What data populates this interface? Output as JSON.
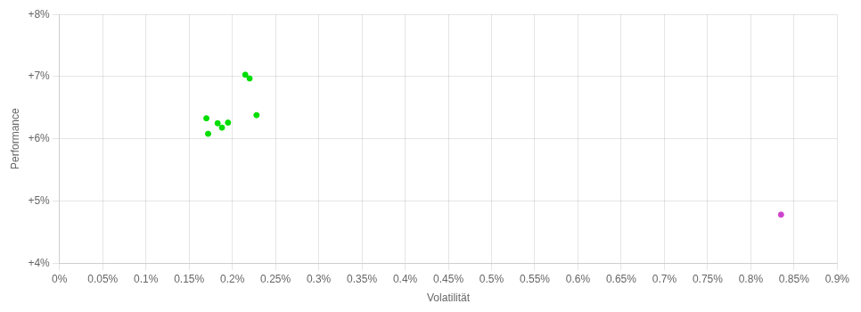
{
  "chart_data": {
    "type": "scatter",
    "x_label": "Volatilität",
    "y_label": "Performance",
    "xlim": [
      0.0,
      0.009
    ],
    "ylim": [
      0.04,
      0.08
    ],
    "xticks": [
      {
        "value": 0.0,
        "label": "0%"
      },
      {
        "value": 0.0005,
        "label": "0.05%"
      },
      {
        "value": 0.001,
        "label": "0.1%"
      },
      {
        "value": 0.0015,
        "label": "0.15%"
      },
      {
        "value": 0.002,
        "label": "0.2%"
      },
      {
        "value": 0.0025,
        "label": "0.25%"
      },
      {
        "value": 0.003,
        "label": "0.3%"
      },
      {
        "value": 0.0035,
        "label": "0.35%"
      },
      {
        "value": 0.004,
        "label": "0.4%"
      },
      {
        "value": 0.0045,
        "label": "0.45%"
      },
      {
        "value": 0.005,
        "label": "0.5%"
      },
      {
        "value": 0.0055,
        "label": "0.55%"
      },
      {
        "value": 0.006,
        "label": "0.6%"
      },
      {
        "value": 0.0065,
        "label": "0.65%"
      },
      {
        "value": 0.007,
        "label": "0.7%"
      },
      {
        "value": 0.0075,
        "label": "0.75%"
      },
      {
        "value": 0.008,
        "label": "0.8%"
      },
      {
        "value": 0.0085,
        "label": "0.85%"
      },
      {
        "value": 0.009,
        "label": "0.9%"
      }
    ],
    "yticks": [
      {
        "value": 0.04,
        "label": "+4%"
      },
      {
        "value": 0.05,
        "label": "+5%"
      },
      {
        "value": 0.06,
        "label": "+6%"
      },
      {
        "value": 0.07,
        "label": "+7%"
      },
      {
        "value": 0.08,
        "label": "+8%"
      }
    ],
    "series": [
      {
        "color": "#00dd00",
        "x": [
          0.00215,
          0.0022,
          0.0017,
          0.00183,
          0.00188,
          0.00172,
          0.00195,
          0.00228
        ],
        "values": [
          0.0703,
          0.0697,
          0.0633,
          0.0625,
          0.0618,
          0.0608,
          0.0626,
          0.0638
        ]
      },
      {
        "color": "#cc44cc",
        "x": [
          0.00835
        ],
        "values": [
          0.0478
        ]
      }
    ],
    "grid": true
  }
}
